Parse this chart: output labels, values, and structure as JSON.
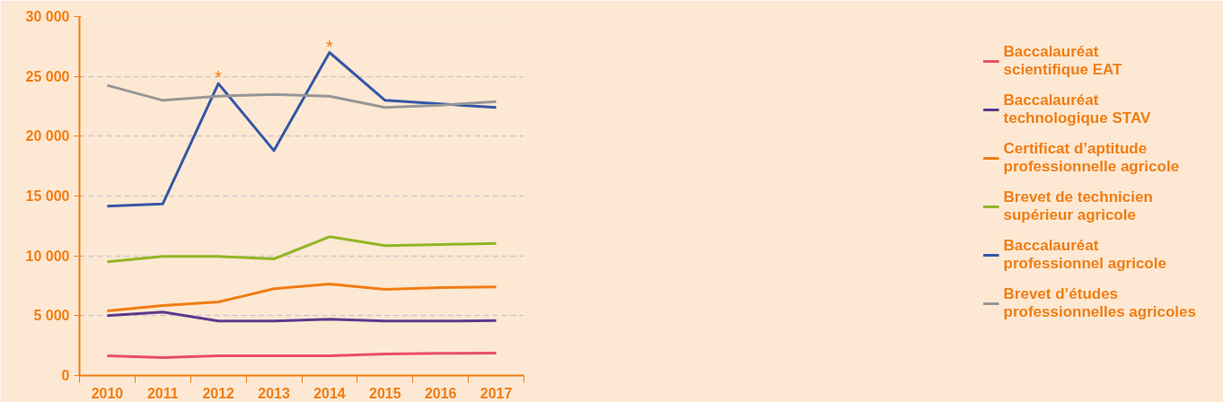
{
  "chart_data": {
    "type": "line",
    "categories": [
      "2010",
      "2011",
      "2012",
      "2013",
      "2014",
      "2015",
      "2016",
      "2017"
    ],
    "series": [
      {
        "name": "Baccalauréat scientifique EAT",
        "color": "#e94e68",
        "values": [
          1650,
          1500,
          1650,
          1650,
          1650,
          1800,
          1850,
          1870
        ]
      },
      {
        "name": "Baccalauréat technologique STAV",
        "color": "#5c3a8e",
        "values": [
          5000,
          5300,
          4550,
          4550,
          4700,
          4550,
          4550,
          4600
        ]
      },
      {
        "name": "Certificat d’aptitude professionnelle agricole",
        "color": "#f07d13",
        "values": [
          5400,
          5850,
          6150,
          7250,
          7650,
          7200,
          7350,
          7400
        ]
      },
      {
        "name": "Brevet de technicien supérieur agricole",
        "color": "#93b526",
        "values": [
          9500,
          9950,
          9950,
          9750,
          11600,
          10850,
          10950,
          11050
        ]
      },
      {
        "name": "Baccalauréat professionnel agricole",
        "color": "#3457a6",
        "values": [
          14150,
          14350,
          24400,
          18800,
          27000,
          23000,
          22700,
          22400
        ]
      },
      {
        "name": "Brevet d’études professionnelles agricoles",
        "color": "#979797",
        "values": [
          24250,
          23000,
          23350,
          23500,
          23350,
          22400,
          22600,
          22900
        ]
      }
    ],
    "ylim": [
      0,
      30000
    ],
    "yticks": [
      {
        "value": 0,
        "label": "0"
      },
      {
        "value": 5000,
        "label": "5 000"
      },
      {
        "value": 10000,
        "label": "10 000"
      },
      {
        "value": 15000,
        "label": "15 000"
      },
      {
        "value": 20000,
        "label": "20 000"
      },
      {
        "value": 25000,
        "label": "25 000"
      },
      {
        "value": 30000,
        "label": "30 000"
      }
    ],
    "annotations": [
      {
        "text": "*",
        "x": "2012",
        "y": 24400
      },
      {
        "text": "*",
        "x": "2014",
        "y": 27000
      }
    ],
    "grid": "y",
    "legend": "right",
    "marker": "none",
    "line_style": "solid"
  }
}
